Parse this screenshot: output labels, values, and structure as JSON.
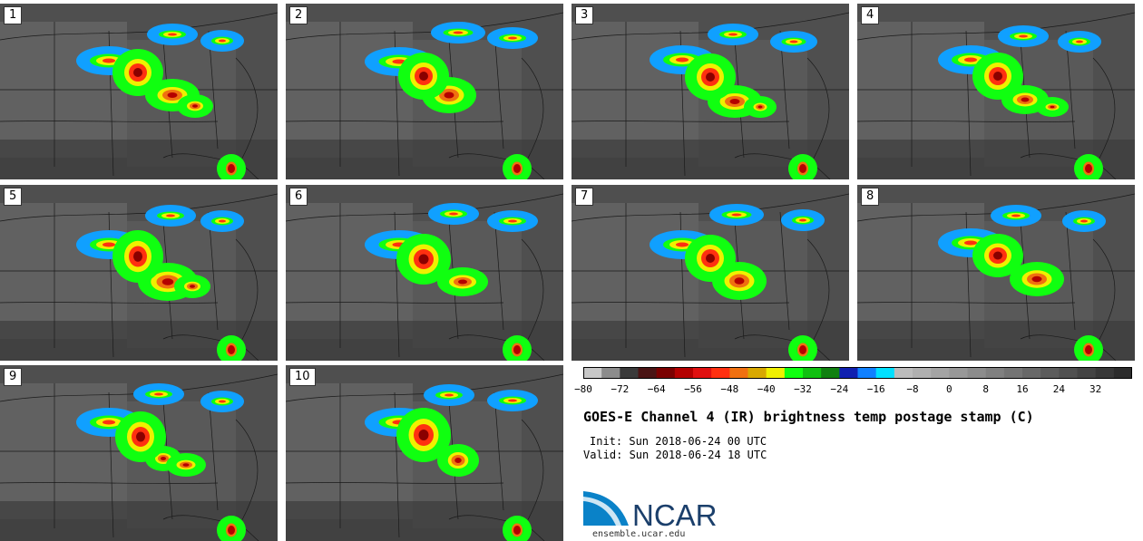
{
  "panels": [
    {
      "label": "1"
    },
    {
      "label": "2"
    },
    {
      "label": "3"
    },
    {
      "label": "4"
    },
    {
      "label": "5"
    },
    {
      "label": "6"
    },
    {
      "label": "7"
    },
    {
      "label": "8"
    },
    {
      "label": "9"
    },
    {
      "label": "10"
    }
  ],
  "colorbar": {
    "ticks": [
      "−80",
      "−72",
      "−64",
      "−56",
      "−48",
      "−40",
      "−32",
      "−24",
      "−16",
      "−8",
      "0",
      "8",
      "16",
      "24",
      "32"
    ],
    "colors": [
      "#c8c8c8",
      "#8c8c8c",
      "#3a3a3a",
      "#4a1414",
      "#7a0000",
      "#b40000",
      "#e01010",
      "#ff3010",
      "#f07010",
      "#d8a800",
      "#f0f000",
      "#10ff10",
      "#10c010",
      "#108010",
      "#1020b0",
      "#1080ff",
      "#00e0ff",
      "#bcbcbc",
      "#b0b0b0",
      "#a4a4a4",
      "#989898",
      "#8c8c8c",
      "#808080",
      "#747474",
      "#686868",
      "#5c5c5c",
      "#505050",
      "#444444",
      "#383838",
      "#2c2c2c"
    ]
  },
  "title": "GOES-E Channel 4 (IR) brightness temp postage stamp (C)",
  "init": "Init: Sun 2018-06-24 00 UTC",
  "valid": "Valid: Sun 2018-06-24 18 UTC",
  "logo": {
    "text": "NCAR",
    "color": "#1b3f6b",
    "accent": "#0a82c8"
  },
  "site": "ensemble.ucar.edu"
}
